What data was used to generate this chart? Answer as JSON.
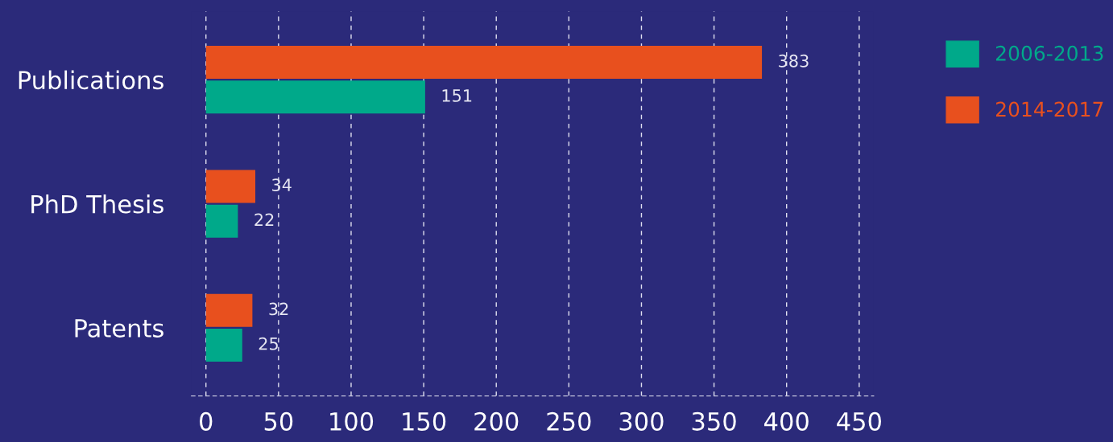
{
  "chart_data": {
    "type": "bar",
    "orientation": "horizontal",
    "categories": [
      "Publications",
      "PhD Thesis",
      "Patents"
    ],
    "series": [
      {
        "name": "2006-2013",
        "color": "#00a98a",
        "values": [
          151,
          22,
          25
        ]
      },
      {
        "name": "2014-2017",
        "color": "#e8501e",
        "values": [
          383,
          34,
          32
        ]
      }
    ],
    "xlim": [
      -10,
      460
    ],
    "xticks": [
      0,
      50,
      100,
      150,
      200,
      250,
      300,
      350,
      400,
      450
    ],
    "grid": "x",
    "legend": "top right",
    "data_labels": true
  }
}
